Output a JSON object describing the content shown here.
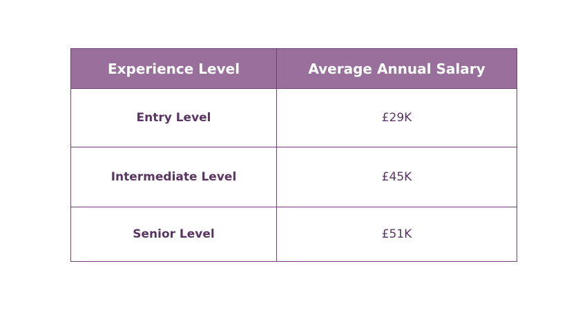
{
  "table": {
    "headers": [
      "Experience Level",
      "Average Annual Salary"
    ],
    "rows": [
      {
        "level": "Entry Level",
        "salary": "£29K"
      },
      {
        "level": "Intermediate Level",
        "salary": "£45K"
      },
      {
        "level": "Senior Level",
        "salary": "£51K"
      }
    ]
  },
  "colors": {
    "header_background": "#98709b",
    "header_text": "#ffffff",
    "border": "#6d3f73",
    "body_text": "#5a3462",
    "page_background": "#ffffff"
  }
}
